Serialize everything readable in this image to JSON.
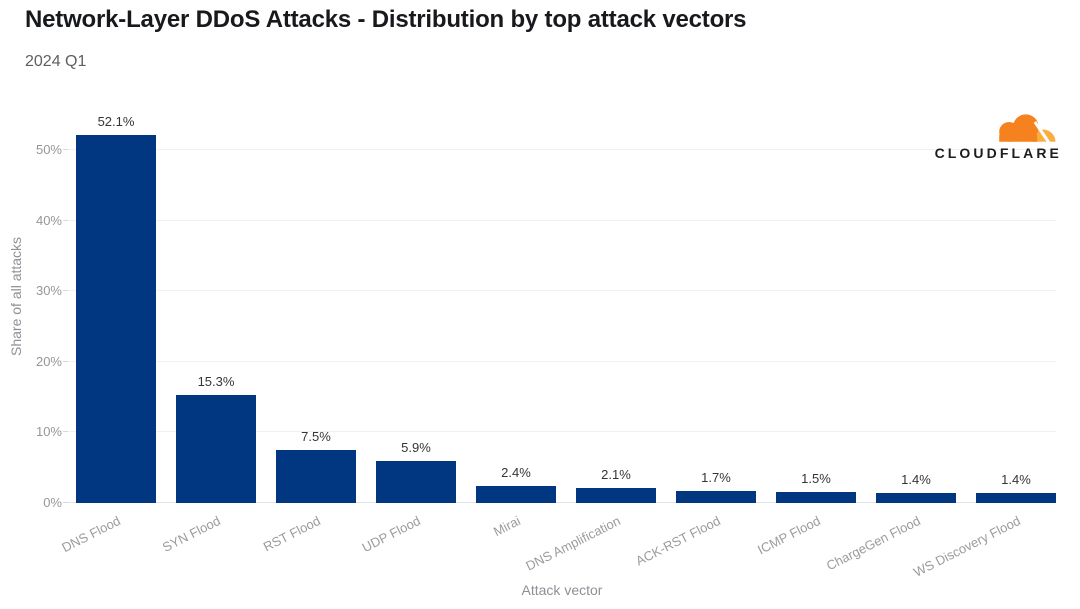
{
  "header": {
    "title": "Network-Layer DDoS Attacks - Distribution by top attack vectors",
    "subtitle": "2024 Q1"
  },
  "logo": {
    "brand": "CLOUDFLARE",
    "cloud_primary_color": "#F6821F",
    "cloud_secondary_color": "#FBAD41",
    "text_color": "#1d1d1f"
  },
  "chart_data": {
    "type": "bar",
    "title": "Network-Layer DDoS Attacks - Distribution by top attack vectors",
    "subtitle": "2024 Q1",
    "categories": [
      "DNS Flood",
      "SYN Flood",
      "RST Flood",
      "UDP Flood",
      "Mirai",
      "DNS Amplification",
      "ACK-RST Flood",
      "ICMP Flood",
      "ChargeGen Flood",
      "WS Discovery Flood"
    ],
    "values": [
      52.1,
      15.3,
      7.5,
      5.9,
      2.4,
      2.1,
      1.7,
      1.5,
      1.4,
      1.4
    ],
    "value_labels": [
      "52.1%",
      "15.3%",
      "7.5%",
      "5.9%",
      "2.4%",
      "2.1%",
      "1.7%",
      "1.5%",
      "1.4%",
      "1.4%"
    ],
    "xlabel": "Attack vector",
    "ylabel": "Share of all attacks",
    "yticks": [
      0,
      10,
      20,
      30,
      40,
      50
    ],
    "ytick_labels": [
      "0%",
      "10%",
      "20%",
      "30%",
      "40%",
      "50%"
    ],
    "ylim": [
      0,
      55
    ],
    "grid": "horizontal",
    "legend": "none",
    "bar_color": "#003780"
  },
  "styles": {
    "grid_color": "#f1f1f2",
    "baseline_color": "#e1e4e9",
    "tick_text_color": "#969696",
    "value_text_color": "#333537",
    "axis_title_color": "#8d9096"
  }
}
